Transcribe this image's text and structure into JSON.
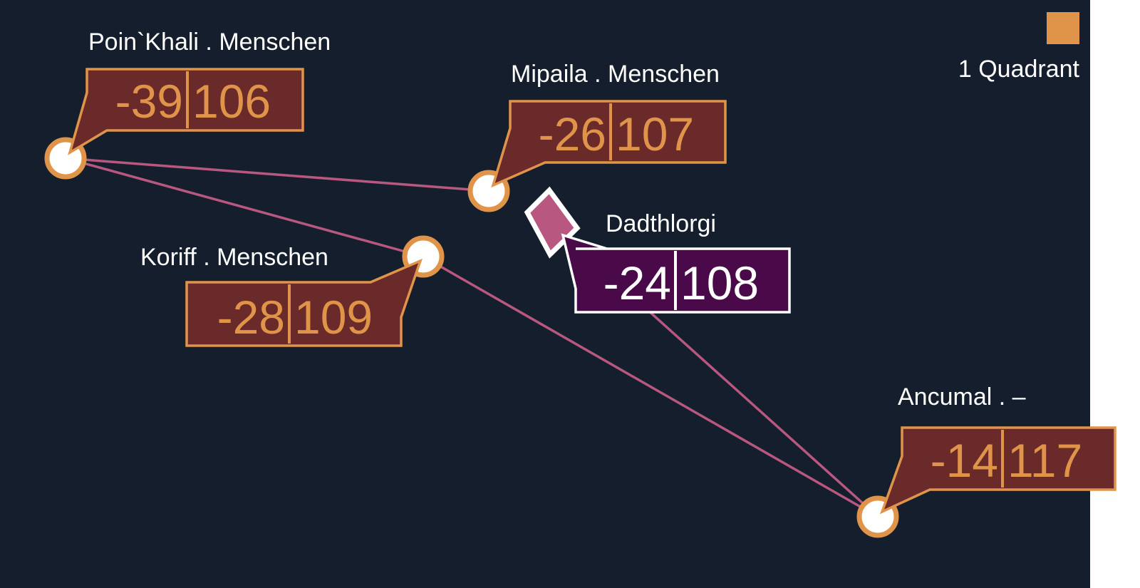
{
  "colors": {
    "background": "#151e2c",
    "quadrant": "#e0944a",
    "label_fill": "#6b2a2a",
    "selected_fill": "#4a0a4a",
    "route": "#b8577f",
    "selected_marker": "#b8577f"
  },
  "legend": {
    "label": "1 Quadrant",
    "icon": "orange-square-icon"
  },
  "systems": [
    {
      "name": "Poin`Khali . Menschen",
      "x": "-39",
      "y": "106"
    },
    {
      "name": "Mipaila . Menschen",
      "x": "-26",
      "y": "107"
    },
    {
      "name": "Koriff . Menschen",
      "x": "-28",
      "y": "109"
    },
    {
      "name": "Dadthlorgi",
      "x": "-24",
      "y": "108",
      "selected": true
    },
    {
      "name": "Ancumal . –",
      "x": "-14",
      "y": "117"
    }
  ],
  "routes": [
    [
      "Poin`Khali",
      "Mipaila"
    ],
    [
      "Poin`Khali",
      "Koriff"
    ],
    [
      "Koriff",
      "Ancumal"
    ],
    [
      "Dadthlorgi",
      "Ancumal"
    ]
  ]
}
